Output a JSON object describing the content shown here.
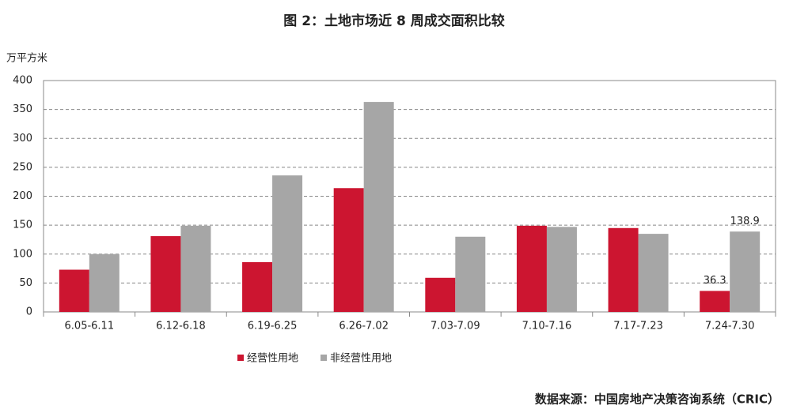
{
  "chart_data": {
    "type": "bar",
    "title": "图 2：土地市场近 8 周成交面积比较",
    "y_label": "万平方米",
    "source": "数据来源：中国房地产决策咨询系统（CRIC）",
    "categories": [
      "6.05-6.11",
      "6.12-6.18",
      "6.19-6.25",
      "6.26-7.02",
      "7.03-7.09",
      "7.10-7.16",
      "7.17-7.23",
      "7.24-7.30"
    ],
    "series": [
      {
        "name": "经营性用地",
        "color": "#cc1530",
        "values": [
          73,
          131,
          86,
          214,
          59,
          149,
          145,
          36.3
        ],
        "value_labels": [
          null,
          null,
          null,
          null,
          null,
          null,
          null,
          "36.3"
        ]
      },
      {
        "name": "非经营性用地",
        "color": "#a6a6a6",
        "values": [
          100,
          149,
          236,
          363,
          130,
          147,
          135,
          138.9
        ],
        "value_labels": [
          null,
          null,
          null,
          null,
          null,
          null,
          null,
          "138.9"
        ]
      }
    ],
    "ylim": [
      0,
      400
    ],
    "yticks": [
      0,
      50,
      100,
      150,
      200,
      250,
      300,
      350,
      400
    ],
    "grid": true,
    "legend": "bottom"
  }
}
